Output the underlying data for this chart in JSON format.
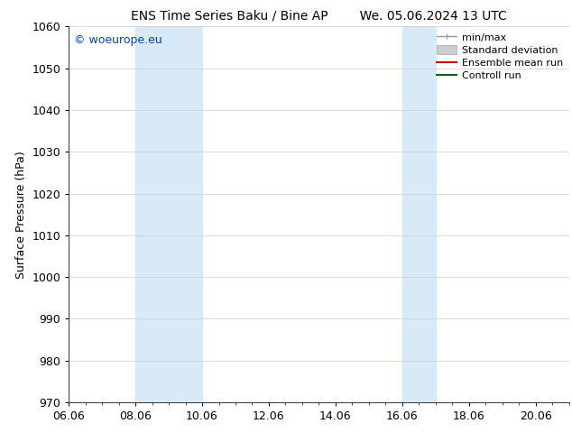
{
  "title_left": "ENS Time Series Baku / Bine AP",
  "title_right": "We. 05.06.2024 13 UTC",
  "ylabel": "Surface Pressure (hPa)",
  "ylim": [
    970,
    1060
  ],
  "yticks": [
    970,
    980,
    990,
    1000,
    1010,
    1020,
    1030,
    1040,
    1050,
    1060
  ],
  "xlim_start": 6.0,
  "xlim_end": 21.0,
  "xtick_labels": [
    "06.06",
    "08.06",
    "10.06",
    "12.06",
    "14.06",
    "16.06",
    "18.06",
    "20.06"
  ],
  "xtick_positions": [
    6.0,
    8.0,
    10.0,
    12.0,
    14.0,
    16.0,
    18.0,
    20.0
  ],
  "shaded_bands": [
    {
      "x_start": 8.0,
      "x_end": 10.0,
      "color": "#d8eaf7"
    },
    {
      "x_start": 16.0,
      "x_end": 17.0,
      "color": "#d8eaf7"
    }
  ],
  "watermark_text": "© woeurope.eu",
  "watermark_color": "#0044bb",
  "legend_entries": [
    {
      "label": "min/max",
      "color": "#999999",
      "type": "line_caps"
    },
    {
      "label": "Standard deviation",
      "color": "#cccccc",
      "type": "patch"
    },
    {
      "label": "Ensemble mean run",
      "color": "#cc0000",
      "type": "line"
    },
    {
      "label": "Controll run",
      "color": "#006600",
      "type": "line"
    }
  ],
  "bg_color": "#ffffff",
  "grid_color": "#cccccc",
  "font_size_title": 10,
  "font_size_axis_label": 9,
  "font_size_tick": 9,
  "font_size_legend": 8,
  "font_size_watermark": 9,
  "title_font": "DejaVu Sans",
  "axis_font": "DejaVu Sans"
}
